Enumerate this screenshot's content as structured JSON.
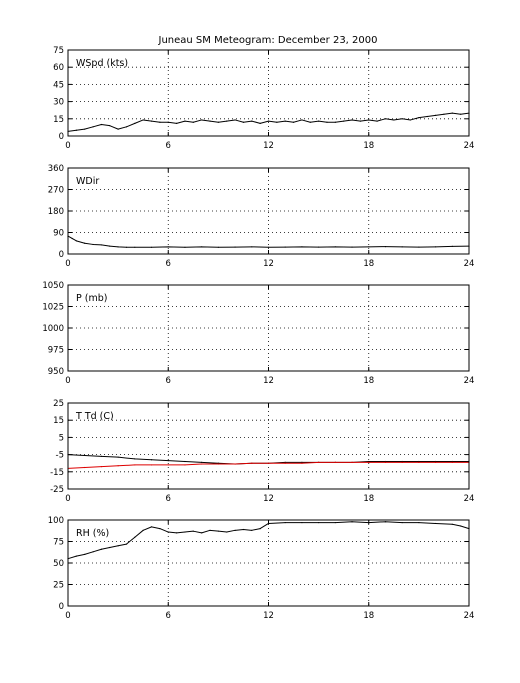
{
  "title": "Juneau SM Meteogram:   December 23, 2000",
  "colors": {
    "axis": "#000000",
    "grid": "#000000",
    "trace": "#000000",
    "dewpoint": "#dd0000",
    "background": "#ffffff"
  },
  "chart_data": [
    {
      "type": "line",
      "label": "WSpd (kts)",
      "xlim": [
        0,
        24
      ],
      "xticks": [
        "0",
        "6",
        "12",
        "18",
        "24"
      ],
      "ylim": [
        0,
        75
      ],
      "yticks": [
        "0",
        "15",
        "30",
        "45",
        "60",
        "75"
      ],
      "grid": true,
      "series": [
        {
          "color": "#000000",
          "x": [
            0,
            0.5,
            1,
            1.5,
            2,
            2.5,
            3,
            3.5,
            4,
            4.5,
            5,
            5.5,
            6,
            6.5,
            7,
            7.5,
            8,
            8.5,
            9,
            9.5,
            10,
            10.5,
            11,
            11.5,
            12,
            12.5,
            13,
            13.5,
            14,
            14.5,
            15,
            15.5,
            16,
            16.5,
            17,
            17.5,
            18,
            18.5,
            19,
            19.5,
            20,
            20.5,
            21,
            21.5,
            22,
            22.5,
            23,
            23.5,
            24
          ],
          "values": [
            4,
            5,
            6,
            8,
            10,
            9,
            6,
            8,
            11,
            14,
            13,
            12,
            12,
            11,
            13,
            12,
            14,
            13,
            12,
            13,
            14,
            12,
            13,
            11,
            13,
            12,
            13,
            12,
            14,
            12,
            13,
            12,
            12,
            13,
            14,
            13,
            14,
            13,
            15,
            14,
            15,
            14,
            16,
            17,
            18,
            19,
            20,
            19,
            20
          ]
        }
      ]
    },
    {
      "type": "line",
      "label": "WDir",
      "xlim": [
        0,
        24
      ],
      "xticks": [
        "0",
        "6",
        "12",
        "18",
        "24"
      ],
      "ylim": [
        0,
        360
      ],
      "yticks": [
        "0",
        "90",
        "180",
        "270",
        "360"
      ],
      "grid": true,
      "series": [
        {
          "color": "#000000",
          "x": [
            0,
            0.25,
            0.5,
            1,
            1.5,
            2,
            2.5,
            3,
            3.5,
            4,
            5,
            6,
            7,
            8,
            9,
            10,
            11,
            12,
            13,
            14,
            15,
            16,
            17,
            18,
            19,
            20,
            21,
            22,
            23,
            24
          ],
          "values": [
            75,
            65,
            55,
            45,
            40,
            38,
            33,
            30,
            28,
            28,
            28,
            30,
            28,
            30,
            28,
            29,
            30,
            28,
            29,
            30,
            29,
            30,
            29,
            30,
            31,
            30,
            29,
            30,
            32,
            33
          ]
        }
      ]
    },
    {
      "type": "line",
      "label": "P (mb)",
      "xlim": [
        0,
        24
      ],
      "xticks": [
        "0",
        "6",
        "12",
        "18",
        "24"
      ],
      "ylim": [
        950,
        1050
      ],
      "yticks": [
        "950",
        "975",
        "1000",
        "1025",
        "1050"
      ],
      "grid": true,
      "series": []
    },
    {
      "type": "line",
      "label": "T Td (C)",
      "xlim": [
        0,
        24
      ],
      "xticks": [
        "0",
        "6",
        "12",
        "18",
        "24"
      ],
      "ylim": [
        -25,
        25
      ],
      "yticks": [
        "-25",
        "-15",
        "-5",
        "5",
        "15",
        "25"
      ],
      "grid": true,
      "series": [
        {
          "color": "#000000",
          "x": [
            0,
            1,
            2,
            3,
            4,
            5,
            6,
            7,
            8,
            9,
            10,
            11,
            12,
            13,
            14,
            15,
            16,
            17,
            18,
            19,
            20,
            21,
            22,
            23,
            24
          ],
          "values": [
            -5,
            -5.5,
            -6,
            -6.5,
            -7.5,
            -8,
            -8.5,
            -9,
            -9.5,
            -10,
            -10.5,
            -10,
            -10,
            -9.5,
            -9.5,
            -9.5,
            -9.5,
            -9.5,
            -9,
            -9,
            -9,
            -9,
            -9,
            -9,
            -9
          ]
        },
        {
          "color": "#dd0000",
          "x": [
            0,
            1,
            2,
            3,
            4,
            5,
            6,
            7,
            8,
            9,
            10,
            11,
            12,
            13,
            14,
            15,
            16,
            17,
            18,
            19,
            20,
            21,
            22,
            23,
            24
          ],
          "values": [
            -13,
            -12.5,
            -12,
            -11.5,
            -11,
            -11,
            -11,
            -11,
            -10.5,
            -10.5,
            -10.5,
            -10,
            -10,
            -10,
            -10,
            -9.5,
            -9.5,
            -9.5,
            -9.5,
            -9.5,
            -9.5,
            -9.5,
            -9.5,
            -9.5,
            -9.5
          ]
        }
      ]
    },
    {
      "type": "line",
      "label": "RH (%)",
      "xlim": [
        0,
        24
      ],
      "xticks": [
        "0",
        "6",
        "12",
        "18",
        "24"
      ],
      "ylim": [
        0,
        100
      ],
      "yticks": [
        "0",
        "25",
        "50",
        "75",
        "100"
      ],
      "grid": true,
      "series": [
        {
          "color": "#000000",
          "x": [
            0,
            0.5,
            1,
            1.5,
            2,
            2.5,
            3,
            3.5,
            4,
            4.5,
            5,
            5.5,
            6,
            6.5,
            7,
            7.5,
            8,
            8.5,
            9,
            9.5,
            10,
            10.5,
            11,
            11.5,
            12,
            13,
            14,
            15,
            16,
            17,
            18,
            19,
            20,
            21,
            22,
            23,
            23.5,
            24
          ],
          "values": [
            55,
            58,
            60,
            63,
            66,
            68,
            70,
            72,
            80,
            88,
            92,
            90,
            86,
            85,
            86,
            87,
            85,
            88,
            87,
            86,
            88,
            89,
            88,
            90,
            96,
            97,
            97,
            97,
            97,
            98,
            97,
            98,
            97,
            97,
            96,
            95,
            93,
            90
          ]
        }
      ]
    }
  ]
}
